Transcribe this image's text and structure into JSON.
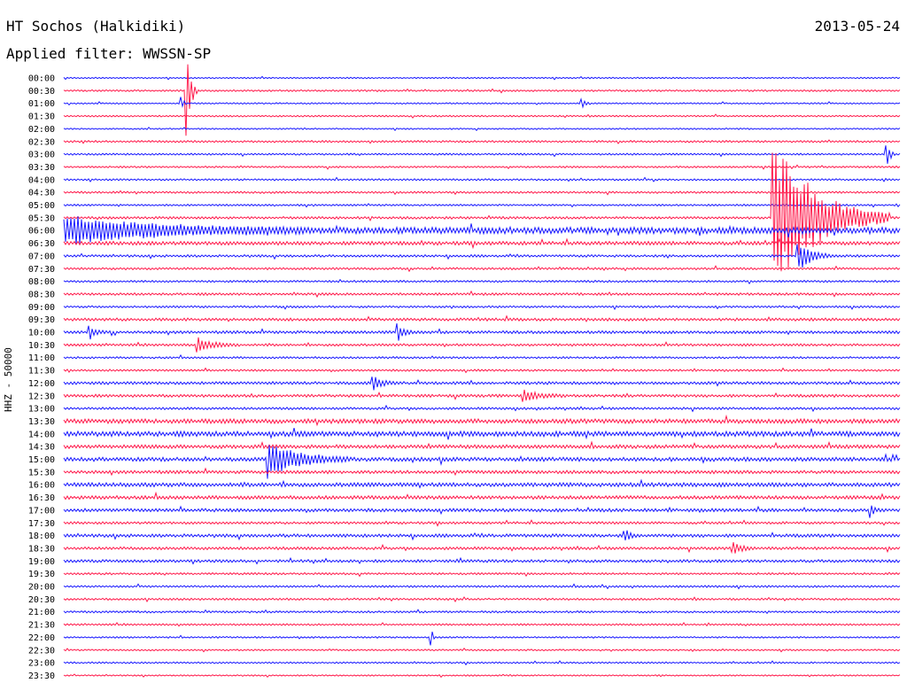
{
  "header": {
    "station": "HT Sochos (Halkidiki)",
    "filter": "Applied filter: WWSSN-SP",
    "date": "2013-05-24"
  },
  "chart_data": {
    "type": "line",
    "title": "HT Sochos (Halkidiki)",
    "subtitle": "Applied filter: WWSSN-SP",
    "date": "2013-05-24",
    "ylabel": "HHZ - 50000",
    "trace_interval_minutes": 30,
    "trace_colors": [
      "#1a1aff",
      "#ff1a4b"
    ],
    "row_labels": [
      "00:00",
      "00:30",
      "01:00",
      "01:30",
      "02:00",
      "02:30",
      "03:00",
      "03:30",
      "04:00",
      "04:30",
      "05:00",
      "05:30",
      "06:00",
      "06:30",
      "07:00",
      "07:30",
      "08:00",
      "08:30",
      "09:00",
      "09:30",
      "10:00",
      "10:30",
      "11:00",
      "11:30",
      "12:00",
      "12:30",
      "13:00",
      "13:30",
      "14:00",
      "14:30",
      "15:00",
      "15:30",
      "16:00",
      "16:30",
      "17:00",
      "17:30",
      "18:00",
      "18:30",
      "19:00",
      "19:30",
      "20:00",
      "20:30",
      "21:00",
      "21:30",
      "22:00",
      "22:30",
      "23:00",
      "23:30"
    ],
    "noise_level": [
      0.35,
      0.45,
      0.35,
      0.4,
      0.35,
      0.5,
      0.45,
      0.45,
      0.45,
      0.5,
      0.45,
      0.6,
      1.6,
      0.9,
      0.6,
      0.55,
      0.5,
      0.6,
      0.5,
      0.7,
      0.7,
      0.6,
      0.5,
      0.5,
      0.7,
      0.7,
      0.6,
      1.1,
      1.3,
      0.9,
      1.0,
      0.8,
      1.0,
      0.9,
      0.8,
      0.6,
      0.8,
      0.7,
      0.7,
      0.5,
      0.5,
      0.5,
      0.5,
      0.45,
      0.4,
      0.4,
      0.4,
      0.35
    ],
    "events": [
      {
        "row": 1,
        "time_fraction": 0.148,
        "amplitude": 7.0,
        "duration_fraction": 0.012
      },
      {
        "row": 2,
        "time_fraction": 0.14,
        "amplitude": 1.2,
        "duration_fraction": 0.008
      },
      {
        "row": 2,
        "time_fraction": 0.62,
        "amplitude": 1.0,
        "duration_fraction": 0.01
      },
      {
        "row": 6,
        "time_fraction": 0.985,
        "amplitude": 1.8,
        "duration_fraction": 0.01
      },
      {
        "row": 11,
        "time_fraction": 0.848,
        "amplitude": 12.0,
        "duration_fraction": 0.14
      },
      {
        "row": 12,
        "time_fraction": 0.0,
        "amplitude": 2.0,
        "duration_fraction": 0.3
      },
      {
        "row": 14,
        "time_fraction": 0.878,
        "amplitude": 2.5,
        "duration_fraction": 0.04
      },
      {
        "row": 20,
        "time_fraction": 0.03,
        "amplitude": 1.2,
        "duration_fraction": 0.02
      },
      {
        "row": 20,
        "time_fraction": 0.4,
        "amplitude": 1.2,
        "duration_fraction": 0.02
      },
      {
        "row": 21,
        "time_fraction": 0.16,
        "amplitude": 1.0,
        "duration_fraction": 0.05
      },
      {
        "row": 24,
        "time_fraction": 0.37,
        "amplitude": 0.9,
        "duration_fraction": 0.03
      },
      {
        "row": 25,
        "time_fraction": 0.55,
        "amplitude": 0.8,
        "duration_fraction": 0.05
      },
      {
        "row": 30,
        "time_fraction": 0.245,
        "amplitude": 2.5,
        "duration_fraction": 0.1
      },
      {
        "row": 34,
        "time_fraction": 0.965,
        "amplitude": 1.0,
        "duration_fraction": 0.01
      },
      {
        "row": 36,
        "time_fraction": 0.67,
        "amplitude": 1.0,
        "duration_fraction": 0.02
      },
      {
        "row": 37,
        "time_fraction": 0.8,
        "amplitude": 0.9,
        "duration_fraction": 0.03
      },
      {
        "row": 44,
        "time_fraction": 0.44,
        "amplitude": 1.5,
        "duration_fraction": 0.004
      }
    ]
  }
}
